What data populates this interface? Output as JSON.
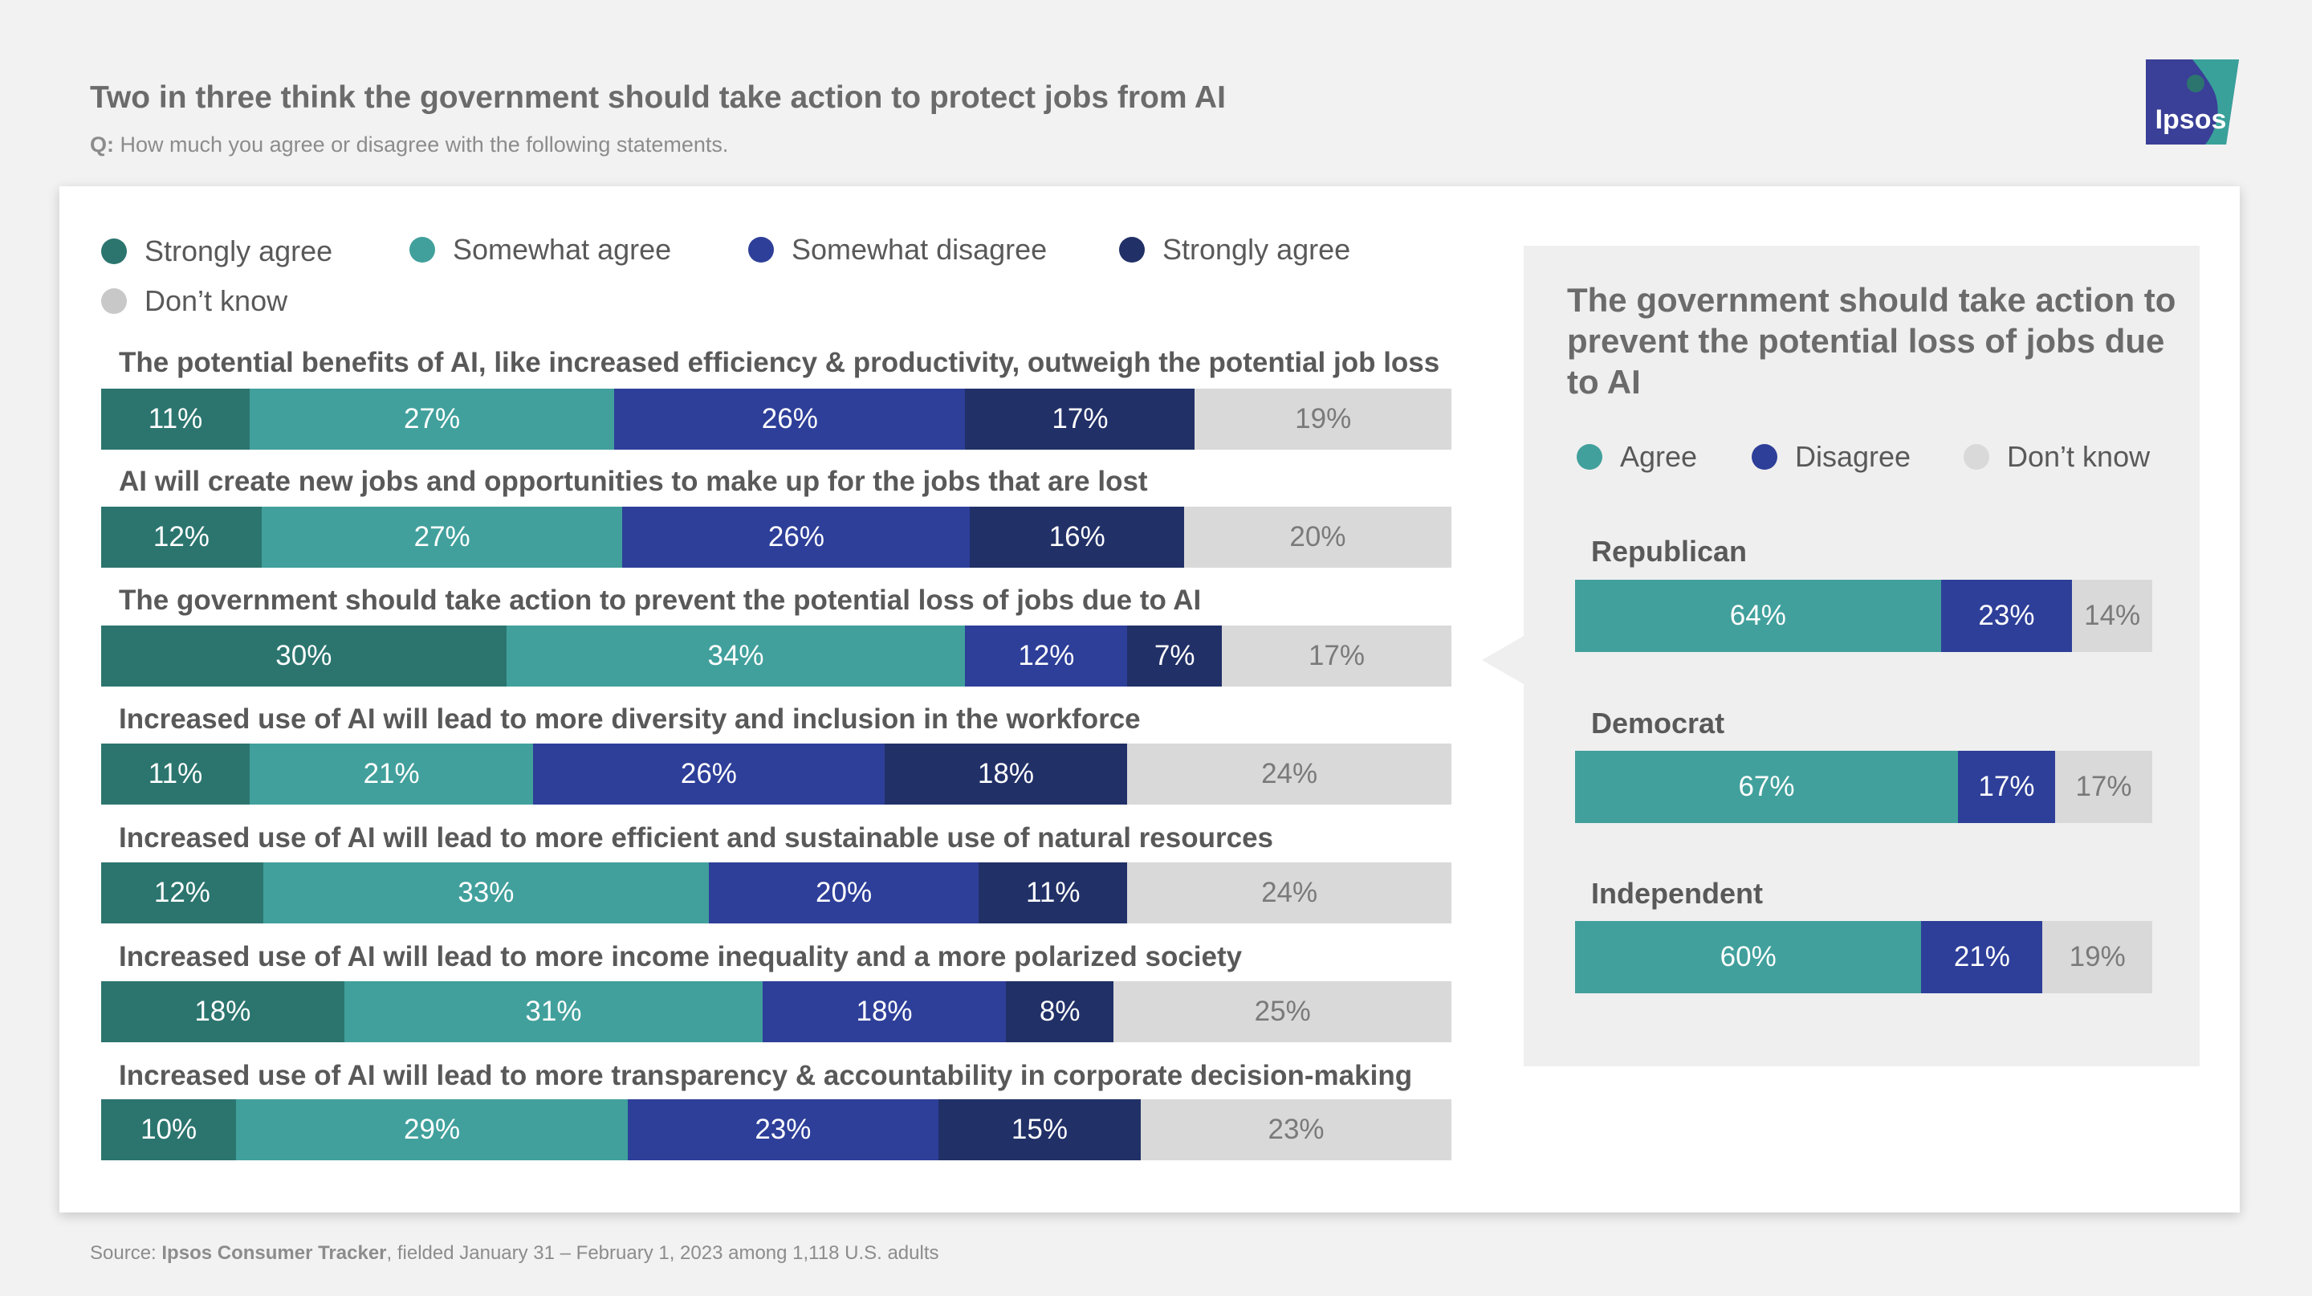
{
  "header": {
    "title": "Two in three think the government should take action to protect jobs from AI",
    "subtitle_prefix": "Q:",
    "subtitle": "How much you agree or disagree with the following statements."
  },
  "logo": {
    "text": "Ipsos",
    "color": "#3a3f97",
    "accent": "#39a19a"
  },
  "colors": {
    "strongly_agree": "#2c756f",
    "somewhat_agree": "#41a09c",
    "somewhat_disagree": "#2e3f99",
    "strongly_disagree": "#213067",
    "dont_know": "#d9d9d9"
  },
  "legend": [
    {
      "label": "Strongly agree",
      "color": "#2c756f"
    },
    {
      "label": "Somewhat agree",
      "color": "#41a09c"
    },
    {
      "label": "Somewhat disagree",
      "color": "#2e3f99"
    },
    {
      "label": "Strongly agree",
      "color": "#213067"
    },
    {
      "label": "Don’t know",
      "color": "#c8c8c8"
    }
  ],
  "chart_data": [
    {
      "type": "bar",
      "orientation": "horizontal",
      "stacked": true,
      "categories": [
        "The potential benefits of AI, like increased efficiency & productivity, outweigh the potential job loss",
        "AI will create new jobs and opportunities to make up for the jobs that are lost",
        "The government should take action to prevent the potential loss of jobs due to AI",
        "Increased use of AI will lead to more diversity and inclusion in the workforce",
        "Increased use of AI will lead to more efficient and sustainable use of natural resources",
        "Increased use of AI will lead to more income inequality and a more polarized society",
        "Increased use of AI will lead to more transparency & accountability in corporate decision-making"
      ],
      "series": [
        {
          "name": "Strongly agree",
          "color": "#2c756f",
          "values": [
            11,
            12,
            30,
            11,
            12,
            18,
            10
          ]
        },
        {
          "name": "Somewhat agree",
          "color": "#41a09c",
          "values": [
            27,
            27,
            34,
            21,
            33,
            31,
            29
          ]
        },
        {
          "name": "Somewhat disagree",
          "color": "#2e3f99",
          "values": [
            26,
            26,
            12,
            26,
            20,
            18,
            23
          ]
        },
        {
          "name": "Strongly agree",
          "color": "#213067",
          "values": [
            17,
            16,
            7,
            18,
            11,
            8,
            15
          ]
        },
        {
          "name": "Don’t know",
          "color": "#d9d9d9",
          "values": [
            19,
            20,
            17,
            24,
            24,
            25,
            23
          ]
        }
      ],
      "value_suffix": "%"
    },
    {
      "type": "bar",
      "orientation": "horizontal",
      "stacked": true,
      "title": "The government should take action to prevent the potential loss of jobs due to AI",
      "legend": [
        {
          "label": "Agree",
          "color": "#41a09c"
        },
        {
          "label": "Disagree",
          "color": "#2e3f99"
        },
        {
          "label": "Don’t know",
          "color": "#d9d9d9"
        }
      ],
      "categories": [
        "Republican",
        "Democrat",
        "Independent"
      ],
      "series": [
        {
          "name": "Agree",
          "color": "#41a09c",
          "values": [
            64,
            67,
            60
          ]
        },
        {
          "name": "Disagree",
          "color": "#2e3f99",
          "values": [
            23,
            17,
            21
          ]
        },
        {
          "name": "Don’t know",
          "color": "#d9d9d9",
          "values": [
            14,
            17,
            19
          ]
        }
      ],
      "value_suffix": "%"
    }
  ],
  "source": {
    "prefix": "Source: ",
    "name": "Ipsos Consumer Tracker",
    "rest": ", fielded January 31 – February 1, 2023 among 1,118 U.S. adults"
  }
}
